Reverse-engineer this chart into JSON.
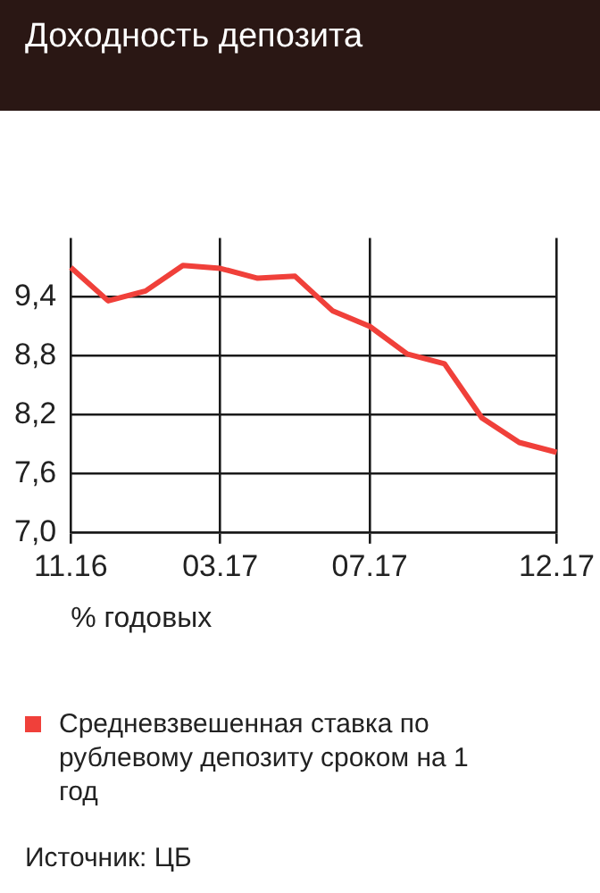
{
  "chart_data": {
    "type": "line",
    "title": "Доходность депозита",
    "xlabel": "% годовых",
    "categories": [
      "11.16",
      null,
      null,
      null,
      "03.17",
      null,
      null,
      null,
      "07.17",
      null,
      null,
      null,
      null,
      "12.17"
    ],
    "series": [
      {
        "name": "Средневзвешенная ставка по рублевому депозиту сроком на 1 год",
        "color": "#f0403a",
        "values": [
          9.7,
          9.36,
          9.46,
          9.72,
          9.69,
          9.59,
          9.61,
          9.26,
          9.1,
          8.82,
          8.72,
          8.17,
          7.92,
          7.82
        ]
      }
    ],
    "ylim": [
      7.0,
      10.0
    ],
    "yticks": [
      {
        "value": 7.0,
        "label": "7,0"
      },
      {
        "value": 7.6,
        "label": "7,6"
      },
      {
        "value": 8.2,
        "label": "8,2"
      },
      {
        "value": 8.8,
        "label": "8,8"
      },
      {
        "value": 9.4,
        "label": "9,4"
      }
    ],
    "grid": true,
    "legend": "bottom",
    "marker": "none",
    "line_style": "solid",
    "annotations": [
      "Источник: ЦБ"
    ]
  }
}
